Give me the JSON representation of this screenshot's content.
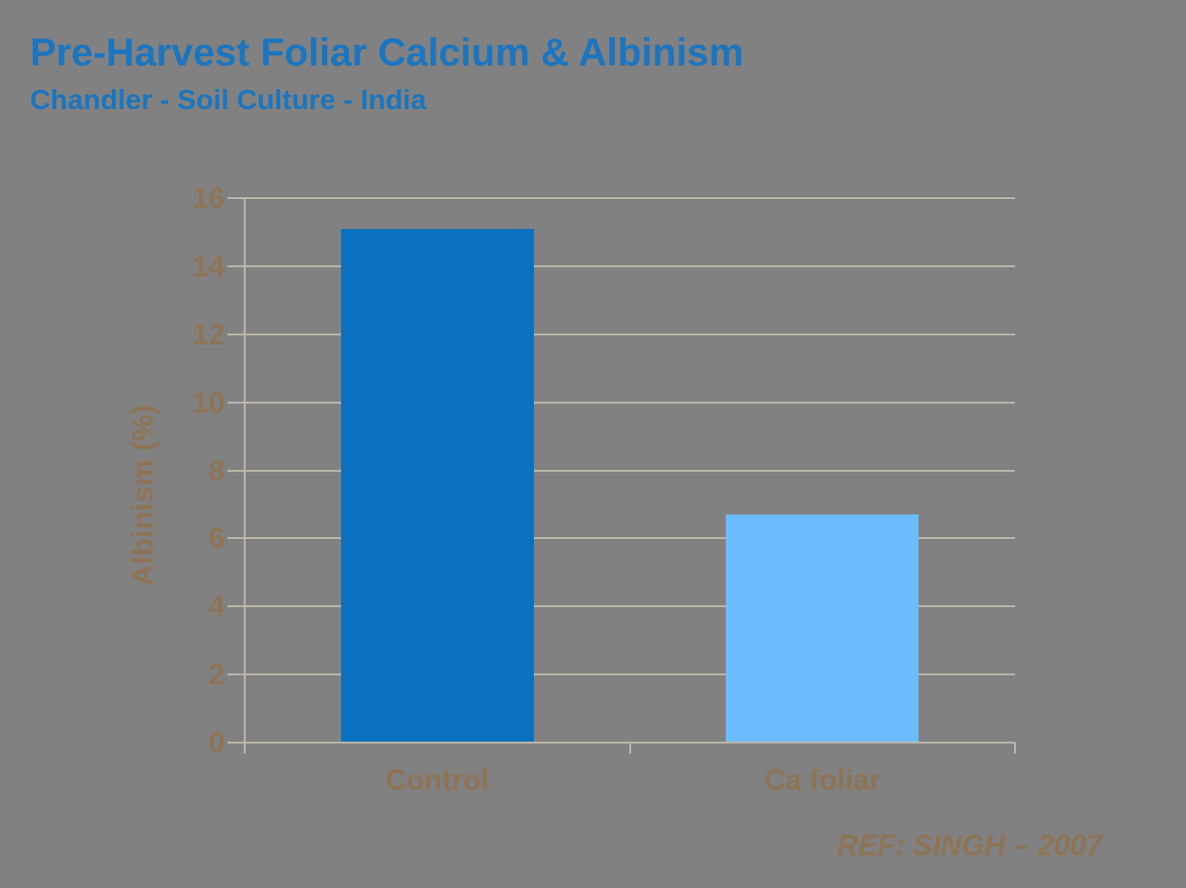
{
  "header": {
    "title": "Pre-Harvest Foliar Calcium & Albinism",
    "subtitle": "Chandler - Soil Culture - India"
  },
  "footer": {
    "reference": "REF: SINGH – 2007"
  },
  "colors": {
    "background": "#818181",
    "heading_blue": "#1B75C0",
    "axis_text_tan": "#8E7456",
    "axis_line": "#BFB7AA",
    "bar_control": "#0A71BF",
    "bar_ca_foliar": "#6BBCFF"
  },
  "chart_data": {
    "type": "bar",
    "title": "Pre-Harvest Foliar Calcium & Albinism",
    "subtitle": "Chandler - Soil Culture - India",
    "categories": [
      "Control",
      "Ca foliar"
    ],
    "values": [
      15.1,
      6.7
    ],
    "series_colors": [
      "#0A71BF",
      "#6BBCFF"
    ],
    "xlabel": "",
    "ylabel": "Albinism (%)",
    "ylim": [
      0,
      16
    ],
    "yticks": [
      0,
      2,
      4,
      6,
      8,
      10,
      12,
      14,
      16
    ],
    "grid": true,
    "legend": false
  }
}
